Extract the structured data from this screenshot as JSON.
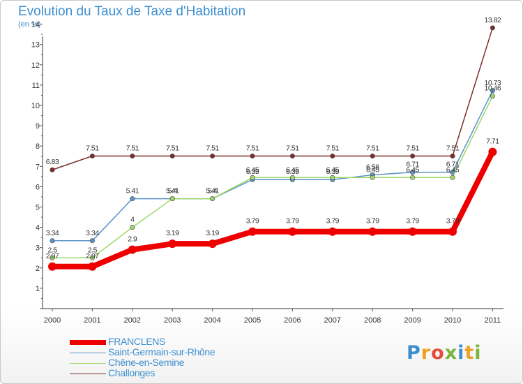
{
  "header": {
    "title": "Evolution du Taux de Taxe d'Habitation",
    "subtitle": "(en %)"
  },
  "logo": {
    "text": "Proxiti",
    "colors": [
      "#3c8fcf",
      "#f0a020",
      "#e84b3a",
      "#7ab33d",
      "#3c8fcf",
      "#f0a020",
      "#7ab33d"
    ]
  },
  "chart_data": {
    "type": "line",
    "title": "Evolution du Taux de Taxe d'Habitation",
    "ylabel": "(en %)",
    "xlabel": "",
    "x": [
      "2000",
      "2001",
      "2002",
      "2003",
      "2004",
      "2005",
      "2006",
      "2007",
      "2008",
      "2009",
      "2010",
      "2011"
    ],
    "ylim": [
      0,
      14
    ],
    "yticks": [
      "1",
      "2",
      "3",
      "4",
      "5",
      "6",
      "7",
      "8",
      "9",
      "10",
      "11",
      "12",
      "13",
      "14"
    ],
    "grid": false,
    "legend_position": "bottom-left",
    "series": [
      {
        "name": "Challonges",
        "color": "#7b2d2d",
        "values": [
          6.83,
          7.51,
          7.51,
          7.51,
          7.51,
          7.51,
          7.51,
          7.51,
          7.51,
          7.51,
          7.51,
          13.82
        ],
        "labels": [
          "6.83",
          "7.51",
          "7.51",
          "7.51",
          "7.51",
          "7.51",
          "7.51",
          "7.51",
          "7.51",
          "7.51",
          "7.51",
          "13.82"
        ]
      },
      {
        "name": "Saint-Germain-sur-Rhône",
        "color": "#5b94c9",
        "values": [
          3.34,
          3.34,
          5.41,
          5.41,
          5.41,
          6.35,
          6.35,
          6.35,
          6.58,
          6.71,
          6.71,
          10.73
        ],
        "labels": [
          "3.34",
          "3.34",
          "5.41",
          "5.4",
          "5.4",
          "6.35",
          "6.35",
          "6.35",
          "6.58",
          "6.71",
          "6.71",
          "10.73"
        ]
      },
      {
        "name": "Chêne-en-Semine",
        "color": "#9fd86a",
        "values": [
          2.5,
          2.5,
          4,
          5.41,
          5.41,
          6.45,
          6.45,
          6.45,
          6.45,
          6.45,
          6.45,
          10.46
        ],
        "labels": [
          "2.5",
          "2.5",
          "4",
          "5.41",
          "5.41",
          "6.45",
          "6.45",
          "6.45",
          "6.45",
          "6.45",
          "6.45",
          "10.46"
        ]
      },
      {
        "name": "FRANCLENS",
        "color": "#ee0000",
        "values": [
          2.07,
          2.07,
          2.9,
          3.19,
          3.19,
          3.79,
          3.79,
          3.79,
          3.79,
          3.79,
          3.79,
          7.71
        ],
        "labels": [
          "2.07",
          "2.07",
          "2.9",
          "3.19",
          "3.19",
          "3.79",
          "3.79",
          "3.79",
          "3.79",
          "3.79",
          "3.79",
          "7.71"
        ]
      }
    ]
  },
  "legend": [
    {
      "name": "FRANCLENS",
      "color": "#ee0000"
    },
    {
      "name": "Saint-Germain-sur-Rhône",
      "color": "#5b94c9"
    },
    {
      "name": "Chêne-en-Semine",
      "color": "#9fd86a"
    },
    {
      "name": "Challonges",
      "color": "#7b2d2d"
    }
  ]
}
